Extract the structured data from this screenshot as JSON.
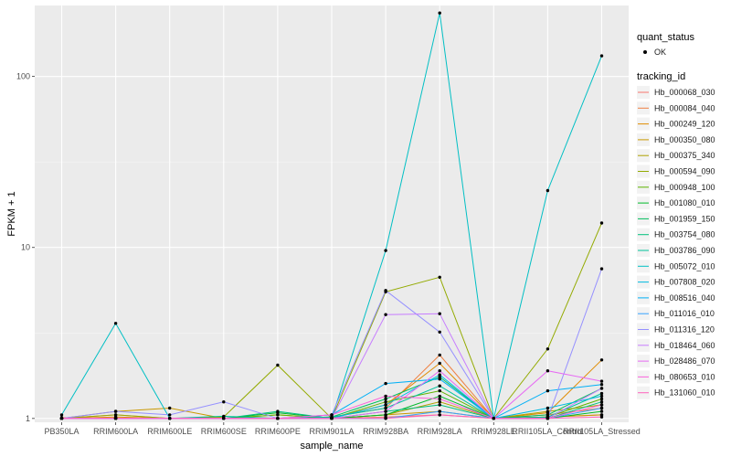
{
  "chart_data": {
    "type": "line",
    "xlabel": "sample_name",
    "ylabel": "FPKM + 1",
    "yscale": "log10",
    "ylim": [
      0.95,
      260
    ],
    "yticks": [
      1,
      10,
      100
    ],
    "ytick_labels": [
      "1",
      "10",
      "100"
    ],
    "categories": [
      "PB350LA",
      "RRIM600LA",
      "RRIM600LE",
      "RRIM600SE",
      "RRIM600PE",
      "RRIM901LA",
      "RRIM928BA",
      "RRIM928LA",
      "RRIM928LE",
      "RRII105LA_Control",
      "RRII105LA_Stressed"
    ],
    "legend_quant_title": "quant_status",
    "legend_quant_items": [
      "OK"
    ],
    "legend_tracking_title": "tracking_id",
    "series": [
      {
        "name": "Hb_000068_030",
        "color": "#F8766D",
        "values": [
          1.0,
          1.05,
          1.0,
          1.0,
          1.0,
          1.0,
          1.02,
          1.05,
          1.0,
          1.02,
          1.05
        ]
      },
      {
        "name": "Hb_000084_040",
        "color": "#EE8043",
        "values": [
          1.01,
          1.0,
          1.0,
          1.0,
          1.0,
          1.02,
          1.15,
          2.35,
          1.0,
          1.05,
          1.15
        ]
      },
      {
        "name": "Hb_000249_120",
        "color": "#E08B00",
        "values": [
          1.0,
          1.02,
          1.0,
          1.0,
          1.0,
          1.01,
          1.2,
          2.1,
          1.0,
          1.08,
          2.2
        ]
      },
      {
        "name": "Hb_000350_080",
        "color": "#C99800",
        "values": [
          1.0,
          1.1,
          1.15,
          1.0,
          1.05,
          1.0,
          1.05,
          1.1,
          1.0,
          1.02,
          1.05
        ]
      },
      {
        "name": "Hb_000375_340",
        "color": "#AFA100",
        "values": [
          1.0,
          1.0,
          1.0,
          1.0,
          1.0,
          1.0,
          1.05,
          1.25,
          1.0,
          1.1,
          1.2
        ]
      },
      {
        "name": "Hb_000594_090",
        "color": "#93AA00",
        "values": [
          1.0,
          1.05,
          1.0,
          1.02,
          2.05,
          1.0,
          5.5,
          6.7,
          1.0,
          2.55,
          13.9
        ]
      },
      {
        "name": "Hb_000948_100",
        "color": "#5EB300",
        "values": [
          1.0,
          1.0,
          1.0,
          1.0,
          1.05,
          1.0,
          1.25,
          1.45,
          1.0,
          1.02,
          1.3
        ]
      },
      {
        "name": "Hb_001080_010",
        "color": "#00B929",
        "values": [
          1.0,
          1.0,
          1.0,
          1.0,
          1.08,
          1.0,
          1.05,
          1.35,
          1.0,
          1.0,
          1.1
        ]
      },
      {
        "name": "Hb_001959_150",
        "color": "#00BD5C",
        "values": [
          1.0,
          1.0,
          1.0,
          1.0,
          1.0,
          1.02,
          1.3,
          1.75,
          1.0,
          1.05,
          1.5
        ]
      },
      {
        "name": "Hb_003754_080",
        "color": "#00BF7D",
        "values": [
          1.0,
          1.0,
          1.0,
          1.0,
          1.1,
          1.0,
          1.1,
          1.2,
          1.0,
          1.0,
          1.25
        ]
      },
      {
        "name": "Hb_003786_090",
        "color": "#00C19A",
        "values": [
          1.0,
          1.0,
          1.0,
          1.03,
          1.0,
          1.02,
          1.15,
          1.55,
          1.0,
          1.02,
          1.4
        ]
      },
      {
        "name": "Hb_005072_010",
        "color": "#00BFC4",
        "values": [
          1.05,
          3.6,
          1.0,
          1.0,
          1.0,
          1.0,
          9.6,
          235,
          1.0,
          21.5,
          132
        ]
      },
      {
        "name": "Hb_007808_020",
        "color": "#00BAE0",
        "values": [
          1.0,
          1.0,
          1.0,
          1.0,
          1.0,
          1.0,
          1.2,
          1.8,
          1.0,
          1.15,
          1.35
        ]
      },
      {
        "name": "Hb_008516_040",
        "color": "#00B0F6",
        "values": [
          1.0,
          1.0,
          1.0,
          1.0,
          1.0,
          1.05,
          1.6,
          1.7,
          1.0,
          1.45,
          1.58
        ]
      },
      {
        "name": "Hb_011016_010",
        "color": "#35A2FF",
        "values": [
          1.0,
          1.0,
          1.0,
          1.0,
          1.0,
          1.0,
          1.0,
          1.1,
          1.0,
          1.0,
          1.15
        ]
      },
      {
        "name": "Hb_011316_120",
        "color": "#9590FF",
        "values": [
          1.0,
          1.1,
          1.05,
          1.25,
          1.0,
          1.05,
          5.6,
          3.2,
          1.0,
          1.0,
          7.5
        ]
      },
      {
        "name": "Hb_018464_060",
        "color": "#C77CFF",
        "values": [
          1.0,
          1.0,
          1.0,
          1.0,
          1.0,
          1.0,
          4.05,
          4.1,
          1.0,
          1.0,
          1.5
        ]
      },
      {
        "name": "Hb_028486_070",
        "color": "#E76BF3",
        "values": [
          1.0,
          1.0,
          1.0,
          1.0,
          1.0,
          1.0,
          1.1,
          1.9,
          1.0,
          1.9,
          1.65
        ]
      },
      {
        "name": "Hb_080653_010",
        "color": "#FA62DB",
        "values": [
          1.0,
          1.0,
          1.0,
          1.0,
          1.0,
          1.05,
          1.35,
          1.3,
          1.0,
          1.0,
          1.2
        ]
      },
      {
        "name": "Hb_131060_010",
        "color": "#FF62BC",
        "values": [
          1.0,
          1.0,
          1.0,
          1.0,
          1.0,
          1.0,
          1.0,
          1.05,
          1.0,
          1.0,
          1.02
        ]
      }
    ]
  }
}
